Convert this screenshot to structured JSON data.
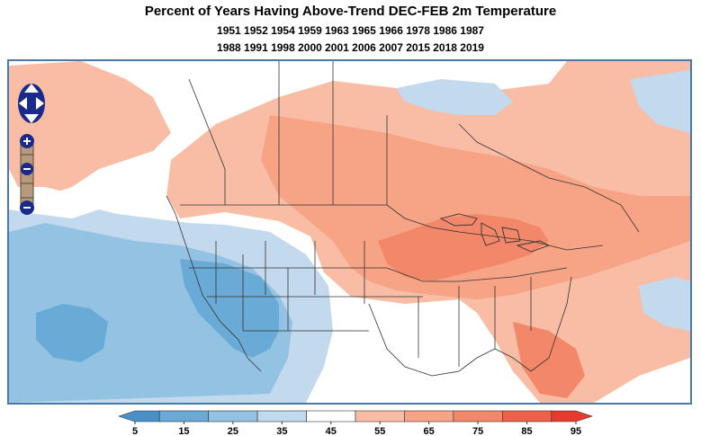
{
  "title": "Percent of Years Having Above-Trend DEC-FEB 2m Temperature",
  "years_line1": "1951 1952 1954 1959 1963 1965 1966 1978 1986 1987",
  "years_line2": "1988 1991 1998 2000 2001 2006 2007 2015 2018 2019",
  "map_controls": {
    "pan_icon": "pan-arrows-icon",
    "zoom_in_icon": "zoom-in-icon",
    "zoom_out_icon": "zoom-out-icon"
  },
  "colorbar": {
    "ticks": [
      "5",
      "15",
      "25",
      "35",
      "45",
      "55",
      "65",
      "75",
      "85",
      "95"
    ],
    "colors": [
      "#4a90c8",
      "#6aaad6",
      "#94c2e2",
      "#c2d9ee",
      "#ffffff",
      "#f9bda5",
      "#f6a386",
      "#f3876a",
      "#ee6048",
      "#e53a2c"
    ]
  },
  "colors": {
    "frame": "#4a78a8",
    "warm_light": "#f9bda5",
    "warm_mid": "#f6a386",
    "cold_light": "#c2d9ee",
    "cold_mid": "#94c2e2",
    "cold_strong": "#6aaad6"
  }
}
